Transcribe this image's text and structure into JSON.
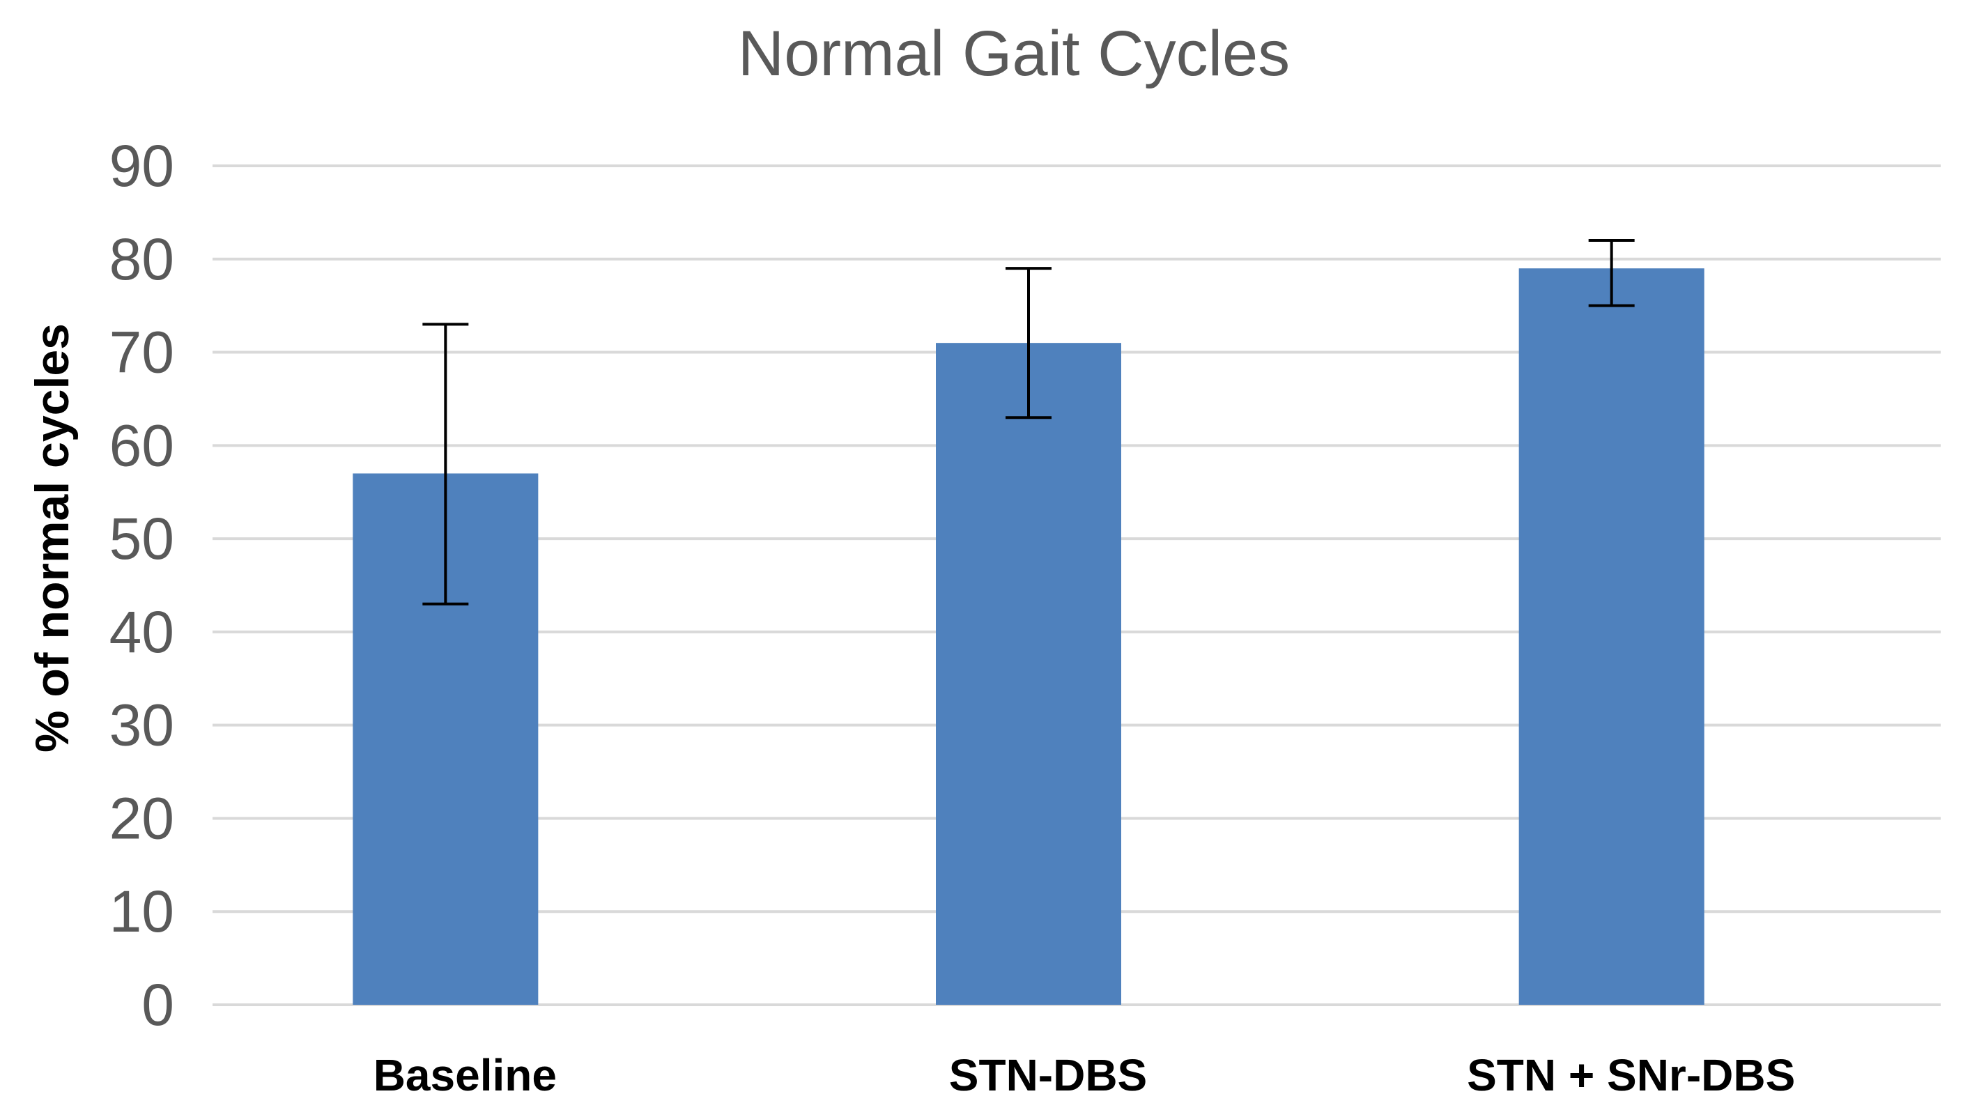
{
  "chart_data": {
    "type": "bar",
    "title": "Normal Gait Cycles",
    "xlabel": "",
    "ylabel": "% of normal cycles",
    "categories": [
      "Baseline",
      "STN-DBS",
      "STN + SNr-DBS"
    ],
    "values": [
      57,
      71,
      79
    ],
    "error_bars": [
      {
        "low": 43,
        "high": 73
      },
      {
        "low": 63,
        "high": 79
      },
      {
        "low": 75,
        "high": 82
      }
    ],
    "yticks": [
      0,
      10,
      20,
      30,
      40,
      50,
      60,
      70,
      80,
      90
    ],
    "ylim": [
      0,
      90
    ],
    "grid": true,
    "legend": "none",
    "colors": {
      "bar": "#4f81bd",
      "grid": "#d9d9d9",
      "tick_text": "#595959",
      "error_bar": "#000000"
    }
  }
}
